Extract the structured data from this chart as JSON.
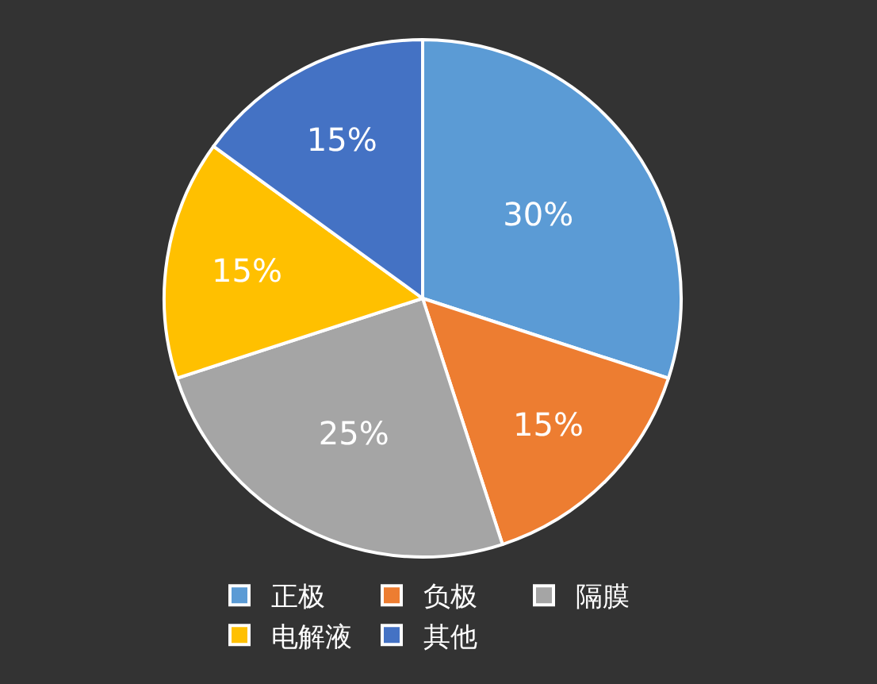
{
  "chart_data": {
    "type": "pie",
    "categories": [
      "正极",
      "负极",
      "隔膜",
      "电解液",
      "其他"
    ],
    "values": [
      30,
      15,
      25,
      15,
      15
    ],
    "colors": [
      "#5b9bd5",
      "#ed7d31",
      "#a5a5a5",
      "#ffc000",
      "#4472c4"
    ],
    "value_labels": [
      "30%",
      "15%",
      "25%",
      "15%",
      "15%"
    ],
    "legend": "bottom"
  }
}
